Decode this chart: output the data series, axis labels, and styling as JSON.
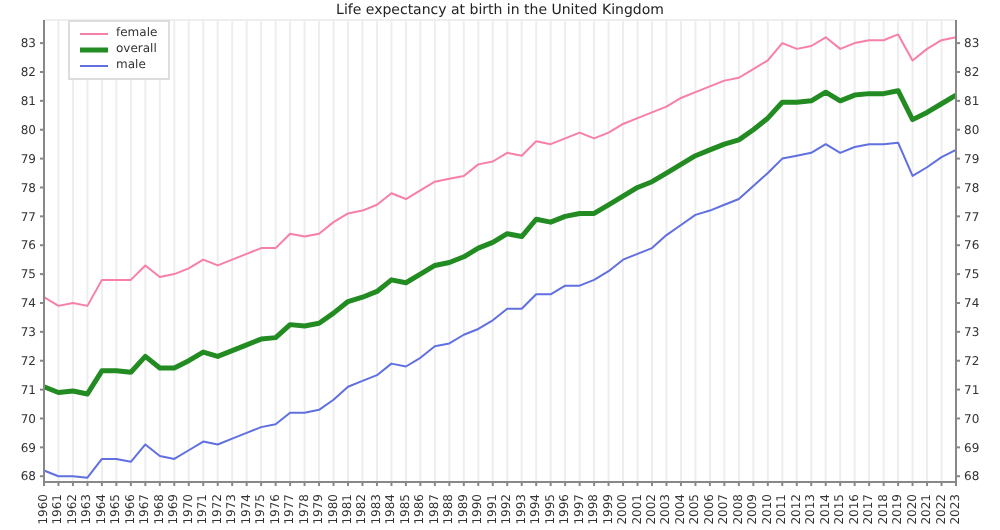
{
  "chart_data": {
    "type": "line",
    "title": "Life expectancy at birth in the United Kingdom",
    "categories": [
      "1960",
      "1961",
      "1962",
      "1963",
      "1964",
      "1965",
      "1966",
      "1967",
      "1968",
      "1969",
      "1970",
      "1971",
      "1972",
      "1973",
      "1974",
      "1975",
      "1976",
      "1977",
      "1978",
      "1979",
      "1980",
      "1981",
      "1982",
      "1983",
      "1984",
      "1985",
      "1986",
      "1987",
      "1988",
      "1989",
      "1990",
      "1991",
      "1992",
      "1993",
      "1994",
      "1995",
      "1996",
      "1997",
      "1998",
      "1999",
      "2000",
      "2001",
      "2002",
      "2003",
      "2004",
      "2005",
      "2006",
      "2007",
      "2008",
      "2009",
      "2010",
      "2011",
      "2012",
      "2013",
      "2014",
      "2015",
      "2016",
      "2017",
      "2018",
      "2019",
      "2020",
      "2021",
      "2022",
      "2023"
    ],
    "series": [
      {
        "name": "female",
        "color": "#f77fa8",
        "values": [
          74.2,
          73.9,
          74.0,
          73.9,
          74.8,
          74.8,
          74.8,
          75.3,
          74.9,
          75.0,
          75.2,
          75.5,
          75.3,
          75.5,
          75.7,
          75.9,
          75.9,
          76.4,
          76.3,
          76.4,
          76.8,
          77.1,
          77.2,
          77.4,
          77.8,
          77.6,
          77.9,
          78.2,
          78.3,
          78.4,
          78.8,
          78.9,
          79.2,
          79.1,
          79.6,
          79.5,
          79.7,
          79.9,
          79.7,
          79.9,
          80.2,
          80.4,
          80.6,
          80.8,
          81.1,
          81.3,
          81.5,
          81.7,
          81.8,
          82.1,
          82.4,
          83.0,
          82.8,
          82.9,
          83.2,
          82.8,
          83.0,
          83.1,
          83.1,
          83.3,
          82.4,
          82.8,
          83.1,
          83.2
        ]
      },
      {
        "name": "overall",
        "color": "#228b22",
        "values": [
          71.1,
          70.9,
          70.95,
          70.85,
          71.65,
          71.65,
          71.6,
          72.15,
          71.75,
          71.75,
          72.0,
          72.3,
          72.15,
          72.35,
          72.55,
          72.75,
          72.8,
          73.25,
          73.2,
          73.3,
          73.65,
          74.05,
          74.2,
          74.4,
          74.8,
          74.7,
          75.0,
          75.3,
          75.4,
          75.6,
          75.9,
          76.1,
          76.4,
          76.3,
          76.9,
          76.8,
          77.0,
          77.1,
          77.1,
          77.4,
          77.7,
          78.0,
          78.2,
          78.5,
          78.8,
          79.1,
          79.3,
          79.5,
          79.65,
          80.0,
          80.4,
          80.95,
          80.95,
          81.0,
          81.3,
          81.0,
          81.2,
          81.25,
          81.25,
          81.35,
          80.35,
          80.6,
          80.9,
          81.2
        ]
      },
      {
        "name": "male",
        "color": "#6070e0",
        "values": [
          68.2,
          68.0,
          68.0,
          67.95,
          68.6,
          68.6,
          68.5,
          69.1,
          68.7,
          68.6,
          68.9,
          69.2,
          69.1,
          69.3,
          69.5,
          69.7,
          69.8,
          70.2,
          70.2,
          70.3,
          70.65,
          71.1,
          71.3,
          71.5,
          71.9,
          71.8,
          72.1,
          72.5,
          72.6,
          72.9,
          73.1,
          73.4,
          73.8,
          73.8,
          74.3,
          74.3,
          74.6,
          74.6,
          74.8,
          75.1,
          75.5,
          75.7,
          75.9,
          76.35,
          76.7,
          77.05,
          77.2,
          77.4,
          77.6,
          78.05,
          78.5,
          79.0,
          79.1,
          79.2,
          79.5,
          79.2,
          79.4,
          79.5,
          79.5,
          79.55,
          78.4,
          78.7,
          79.05,
          79.3
        ]
      }
    ],
    "ylim": [
      67.8,
      83.8
    ],
    "yticks": [
      68,
      69,
      70,
      71,
      72,
      73,
      74,
      75,
      76,
      77,
      78,
      79,
      80,
      81,
      82,
      83
    ],
    "y2lim": [
      67.8,
      83.8
    ],
    "y2ticks": [
      68,
      69,
      70,
      71,
      72,
      73,
      74,
      75,
      76,
      77,
      78,
      79,
      80,
      81,
      82,
      83
    ],
    "grid": true,
    "legend": "top left",
    "marker": "none",
    "line_style": "solid"
  }
}
